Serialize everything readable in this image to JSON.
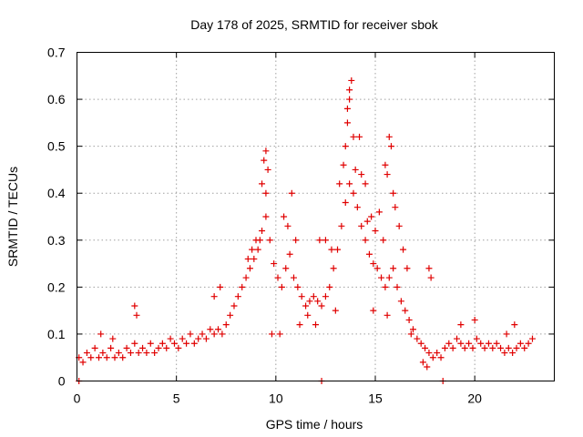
{
  "chart_data": {
    "type": "scatter",
    "title": "Day 178 of 2025, SRMTID for receiver sbok",
    "xlabel": "GPS time / hours",
    "ylabel": "SRMTID / TECUs",
    "xlim": [
      0,
      24
    ],
    "ylim": [
      0,
      0.7
    ],
    "xticks": [
      0,
      5,
      10,
      15,
      20
    ],
    "yticks": [
      0,
      0.1,
      0.2,
      0.3,
      0.4,
      0.5,
      0.6,
      0.7
    ],
    "xtick_labels": [
      "0",
      "5",
      "10",
      "15",
      "20"
    ],
    "ytick_labels": [
      "0",
      "0.1",
      "0.2",
      "0.3",
      "0.4",
      "0.5",
      "0.6",
      "0.7"
    ],
    "grid": true,
    "marker": "+",
    "color": "#e00000",
    "series": [
      {
        "name": "SRMTID",
        "points": [
          [
            0.1,
            0.05
          ],
          [
            0.3,
            0.04
          ],
          [
            0.5,
            0.06
          ],
          [
            0.7,
            0.05
          ],
          [
            0.9,
            0.07
          ],
          [
            1.1,
            0.05
          ],
          [
            1.3,
            0.06
          ],
          [
            1.5,
            0.05
          ],
          [
            1.7,
            0.07
          ],
          [
            1.9,
            0.05
          ],
          [
            2.1,
            0.06
          ],
          [
            2.3,
            0.05
          ],
          [
            2.5,
            0.07
          ],
          [
            2.7,
            0.06
          ],
          [
            2.9,
            0.08
          ],
          [
            3.1,
            0.06
          ],
          [
            3.3,
            0.07
          ],
          [
            3.5,
            0.06
          ],
          [
            3.7,
            0.08
          ],
          [
            3.9,
            0.06
          ],
          [
            4.1,
            0.07
          ],
          [
            4.3,
            0.08
          ],
          [
            4.5,
            0.07
          ],
          [
            4.7,
            0.09
          ],
          [
            4.9,
            0.08
          ],
          [
            5.1,
            0.07
          ],
          [
            5.3,
            0.09
          ],
          [
            5.5,
            0.08
          ],
          [
            5.7,
            0.1
          ],
          [
            5.9,
            0.08
          ],
          [
            6.1,
            0.09
          ],
          [
            6.3,
            0.1
          ],
          [
            6.5,
            0.09
          ],
          [
            6.7,
            0.11
          ],
          [
            6.9,
            0.1
          ],
          [
            7.1,
            0.11
          ],
          [
            7.3,
            0.1
          ],
          [
            7.5,
            0.12
          ],
          [
            7.7,
            0.14
          ],
          [
            7.9,
            0.16
          ],
          [
            8.1,
            0.18
          ],
          [
            8.3,
            0.2
          ],
          [
            8.5,
            0.22
          ],
          [
            8.7,
            0.24
          ],
          [
            8.9,
            0.26
          ],
          [
            9.1,
            0.28
          ],
          [
            9.3,
            0.32
          ],
          [
            9.5,
            0.35
          ],
          [
            9.7,
            0.3
          ],
          [
            9.9,
            0.25
          ],
          [
            10.1,
            0.22
          ],
          [
            10.3,
            0.2
          ],
          [
            10.5,
            0.24
          ],
          [
            10.7,
            0.27
          ],
          [
            10.9,
            0.22
          ],
          [
            11.1,
            0.2
          ],
          [
            11.3,
            0.18
          ],
          [
            11.5,
            0.16
          ],
          [
            11.7,
            0.17
          ],
          [
            11.9,
            0.18
          ],
          [
            12.1,
            0.17
          ],
          [
            12.3,
            0.16
          ],
          [
            12.5,
            0.18
          ],
          [
            12.7,
            0.2
          ],
          [
            12.9,
            0.24
          ],
          [
            13.1,
            0.28
          ],
          [
            13.3,
            0.33
          ],
          [
            13.5,
            0.38
          ],
          [
            13.7,
            0.42
          ],
          [
            13.9,
            0.4
          ],
          [
            14.1,
            0.37
          ],
          [
            14.3,
            0.33
          ],
          [
            14.5,
            0.3
          ],
          [
            14.7,
            0.27
          ],
          [
            14.9,
            0.25
          ],
          [
            15.1,
            0.24
          ],
          [
            15.3,
            0.22
          ],
          [
            15.5,
            0.2
          ],
          [
            15.7,
            0.22
          ],
          [
            15.9,
            0.24
          ],
          [
            16.1,
            0.2
          ],
          [
            16.3,
            0.17
          ],
          [
            16.5,
            0.15
          ],
          [
            16.7,
            0.13
          ],
          [
            16.9,
            0.11
          ],
          [
            17.1,
            0.09
          ],
          [
            17.3,
            0.08
          ],
          [
            17.5,
            0.07
          ],
          [
            17.7,
            0.06
          ],
          [
            17.9,
            0.05
          ],
          [
            18.1,
            0.06
          ],
          [
            18.3,
            0.05
          ],
          [
            18.5,
            0.07
          ],
          [
            18.7,
            0.08
          ],
          [
            18.9,
            0.07
          ],
          [
            19.1,
            0.09
          ],
          [
            19.3,
            0.08
          ],
          [
            19.5,
            0.07
          ],
          [
            19.7,
            0.08
          ],
          [
            19.9,
            0.07
          ],
          [
            20.1,
            0.09
          ],
          [
            20.3,
            0.08
          ],
          [
            20.5,
            0.07
          ],
          [
            20.7,
            0.08
          ],
          [
            20.9,
            0.07
          ],
          [
            21.1,
            0.08
          ],
          [
            21.3,
            0.07
          ],
          [
            21.5,
            0.06
          ],
          [
            21.7,
            0.07
          ],
          [
            21.9,
            0.06
          ],
          [
            22.1,
            0.07
          ],
          [
            22.3,
            0.08
          ],
          [
            22.5,
            0.07
          ],
          [
            22.7,
            0.08
          ],
          [
            9.5,
            0.49
          ],
          [
            9.4,
            0.47
          ],
          [
            9.6,
            0.45
          ],
          [
            9.3,
            0.42
          ],
          [
            9.5,
            0.4
          ],
          [
            10.8,
            0.4
          ],
          [
            10.4,
            0.35
          ],
          [
            10.6,
            0.33
          ],
          [
            11.0,
            0.3
          ],
          [
            12.2,
            0.3
          ],
          [
            12.5,
            0.3
          ],
          [
            12.8,
            0.28
          ],
          [
            13.5,
            0.5
          ],
          [
            13.6,
            0.55
          ],
          [
            13.7,
            0.6
          ],
          [
            13.8,
            0.64
          ],
          [
            13.7,
            0.62
          ],
          [
            13.6,
            0.58
          ],
          [
            13.9,
            0.52
          ],
          [
            14.2,
            0.52
          ],
          [
            13.4,
            0.46
          ],
          [
            14.0,
            0.45
          ],
          [
            14.3,
            0.44
          ],
          [
            14.5,
            0.42
          ],
          [
            13.2,
            0.42
          ],
          [
            15.7,
            0.52
          ],
          [
            15.8,
            0.5
          ],
          [
            15.5,
            0.46
          ],
          [
            15.6,
            0.44
          ],
          [
            15.9,
            0.4
          ],
          [
            16.0,
            0.37
          ],
          [
            16.2,
            0.33
          ],
          [
            15.2,
            0.36
          ],
          [
            15.0,
            0.32
          ],
          [
            14.8,
            0.35
          ],
          [
            14.6,
            0.34
          ],
          [
            15.4,
            0.3
          ],
          [
            16.4,
            0.28
          ],
          [
            16.6,
            0.24
          ],
          [
            17.7,
            0.24
          ],
          [
            17.8,
            0.22
          ],
          [
            8.6,
            0.26
          ],
          [
            8.8,
            0.28
          ],
          [
            9.0,
            0.3
          ],
          [
            9.2,
            0.3
          ],
          [
            7.2,
            0.2
          ],
          [
            6.9,
            0.18
          ],
          [
            2.9,
            0.16
          ],
          [
            3.0,
            0.14
          ],
          [
            1.2,
            0.1
          ],
          [
            1.8,
            0.09
          ],
          [
            9.8,
            0.1
          ],
          [
            10.2,
            0.1
          ],
          [
            11.2,
            0.12
          ],
          [
            11.6,
            0.14
          ],
          [
            12.0,
            0.12
          ],
          [
            13.0,
            0.15
          ],
          [
            14.9,
            0.15
          ],
          [
            15.6,
            0.14
          ],
          [
            16.8,
            0.1
          ],
          [
            17.4,
            0.04
          ],
          [
            17.6,
            0.03
          ],
          [
            18.4,
            0.0
          ],
          [
            0.1,
            0.0
          ],
          [
            12.3,
            0.0
          ],
          [
            22.9,
            0.09
          ],
          [
            22.0,
            0.12
          ],
          [
            20.0,
            0.13
          ],
          [
            19.3,
            0.12
          ],
          [
            21.6,
            0.1
          ]
        ]
      }
    ]
  }
}
